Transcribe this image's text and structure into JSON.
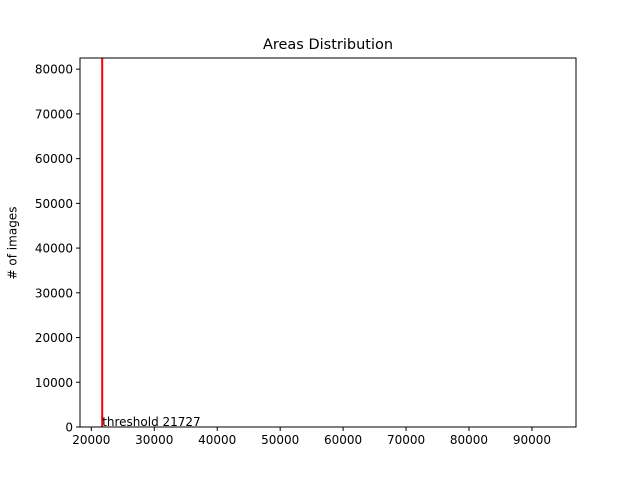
{
  "chart_data": {
    "type": "histogram",
    "title": "Areas Distribution",
    "xlabel": "",
    "ylabel": "# of images",
    "xlim": [
      18200,
      97000
    ],
    "ylim": [
      0,
      82500
    ],
    "x_ticks": [
      20000,
      30000,
      40000,
      50000,
      60000,
      70000,
      80000,
      90000
    ],
    "x_tick_labels": [
      "20000",
      "30000",
      "40000",
      "50000",
      "60000",
      "70000",
      "80000",
      "90000"
    ],
    "y_ticks": [
      0,
      10000,
      20000,
      30000,
      40000,
      50000,
      60000,
      70000,
      80000
    ],
    "y_tick_labels": [
      "0",
      "10000",
      "20000",
      "30000",
      "40000",
      "50000",
      "60000",
      "70000",
      "80000"
    ],
    "grid": false,
    "threshold": {
      "value": 21727,
      "label": "threshold 21727",
      "color": "#ff0000"
    }
  }
}
